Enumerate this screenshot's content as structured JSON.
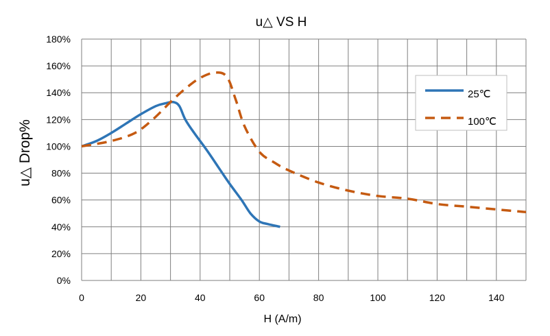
{
  "chart_data": {
    "type": "line",
    "title": "u△ VS H",
    "xlabel": "H (A/m)",
    "ylabel": "u△ Drop%",
    "xlim": [
      0,
      150
    ],
    "ylim": [
      0,
      180
    ],
    "x_ticks": [
      0,
      20,
      40,
      60,
      80,
      100,
      120,
      140
    ],
    "y_ticks": [
      0,
      20,
      40,
      60,
      80,
      100,
      120,
      140,
      160,
      180
    ],
    "y_tick_suffix": "%",
    "grid": true,
    "legend_position": "right",
    "series": [
      {
        "name": "25℃",
        "color": "#2e75b6",
        "dash": "solid",
        "points": [
          [
            0,
            100
          ],
          [
            5,
            104
          ],
          [
            10,
            110
          ],
          [
            15,
            117
          ],
          [
            20,
            124
          ],
          [
            25,
            130
          ],
          [
            28,
            132
          ],
          [
            31,
            133
          ],
          [
            33,
            130
          ],
          [
            35,
            120
          ],
          [
            38,
            110
          ],
          [
            42,
            98
          ],
          [
            46,
            85
          ],
          [
            50,
            72
          ],
          [
            54,
            60
          ],
          [
            57,
            50
          ],
          [
            60,
            44
          ],
          [
            63,
            42
          ],
          [
            67,
            40
          ]
        ]
      },
      {
        "name": "100℃",
        "color": "#c55a11",
        "dash": "dashed",
        "points": [
          [
            0,
            100
          ],
          [
            10,
            104
          ],
          [
            18,
            110
          ],
          [
            24,
            120
          ],
          [
            30,
            133
          ],
          [
            35,
            143
          ],
          [
            40,
            151
          ],
          [
            45,
            155
          ],
          [
            49,
            152
          ],
          [
            52,
            135
          ],
          [
            55,
            115
          ],
          [
            60,
            96
          ],
          [
            65,
            88
          ],
          [
            70,
            82
          ],
          [
            80,
            73
          ],
          [
            90,
            67
          ],
          [
            100,
            63
          ],
          [
            110,
            61
          ],
          [
            120,
            57
          ],
          [
            130,
            55
          ],
          [
            140,
            53
          ],
          [
            150,
            51
          ]
        ]
      }
    ]
  }
}
